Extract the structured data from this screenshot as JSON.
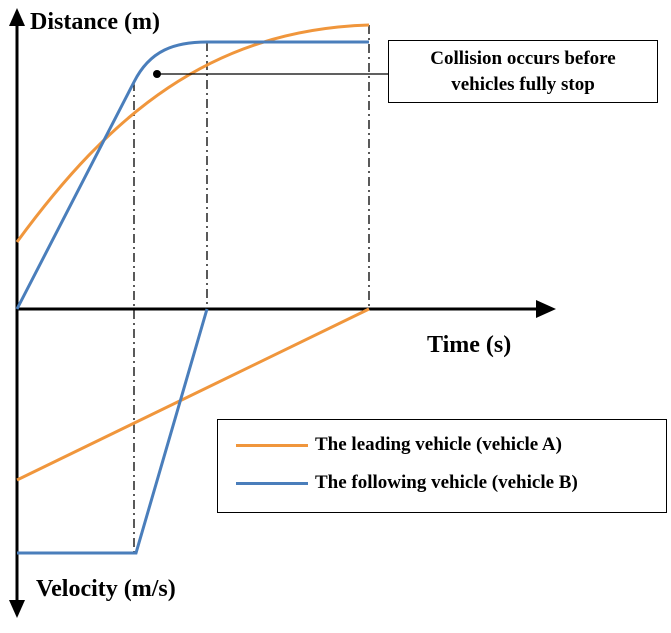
{
  "axes": {
    "distance_label": "Distance (m)",
    "time_label": "Time (s)",
    "velocity_label": "Velocity (m/s)"
  },
  "callout": {
    "line1": "Collision occurs before",
    "line2": "vehicles fully stop"
  },
  "legend": [
    {
      "label": "The leading vehicle (vehicle A)",
      "color": "#F0963C"
    },
    {
      "label": "The following vehicle (vehicle B)",
      "color": "#4A7EBB"
    }
  ],
  "colors": {
    "vehicle_a": "#F0963C",
    "vehicle_b": "#4A7EBB",
    "axis": "#000000"
  }
}
